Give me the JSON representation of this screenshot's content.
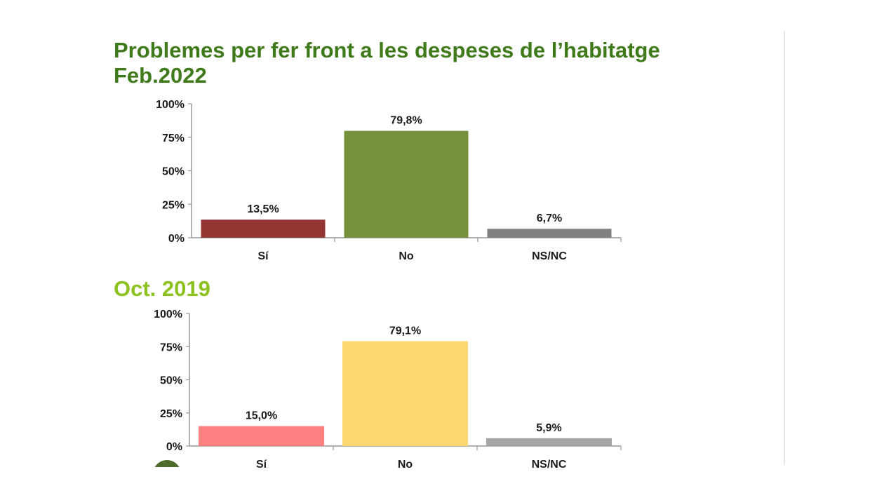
{
  "chart_data": [
    {
      "type": "bar",
      "title": "Problemes per fer front a les despeses de l’habitatge",
      "subtitle": "Feb.2022",
      "categories": [
        "Sí",
        "No",
        "NS/NC"
      ],
      "values": [
        13.5,
        79.8,
        6.7
      ],
      "data_labels": [
        "13,5%",
        "79,8%",
        "6,7%"
      ],
      "colors": [
        "#943634",
        "#76923c",
        "#808080"
      ],
      "yticks": [
        "0%",
        "25%",
        "50%",
        "75%",
        "100%"
      ],
      "ylim": [
        0,
        100
      ],
      "grid": false
    },
    {
      "type": "bar",
      "title": "Oct. 2019",
      "categories": [
        "Sí",
        "No",
        "NS/NC"
      ],
      "values": [
        15.0,
        79.1,
        5.9
      ],
      "data_labels": [
        "15,0%",
        "79,1%",
        "5,9%"
      ],
      "colors": [
        "#ff8080",
        "#fcd870",
        "#a6a6a6"
      ],
      "yticks": [
        "0%",
        "25%",
        "50%",
        "75%",
        "100%"
      ],
      "ylim": [
        0,
        100
      ],
      "grid": false
    }
  ]
}
